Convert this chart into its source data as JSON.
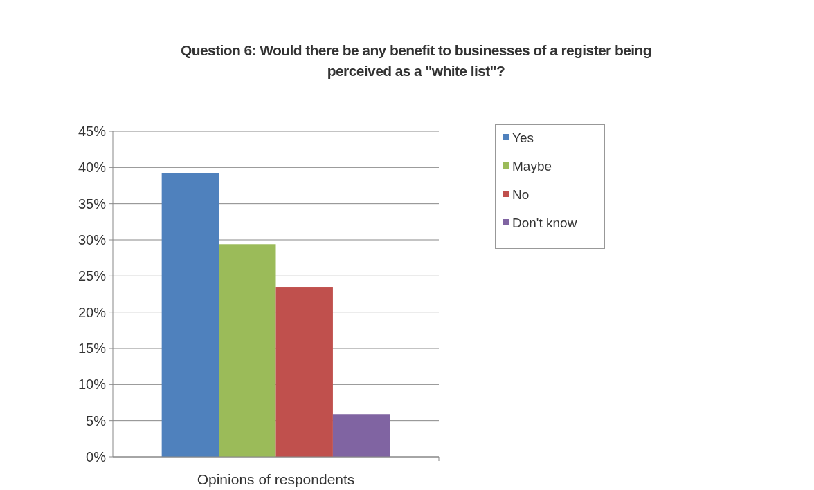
{
  "chart_data": {
    "type": "bar",
    "title": "Question 6: Would there be any benefit to businesses of a register being perceived as a \"white list\"?",
    "categories": [
      "Opinions of respondents"
    ],
    "series": [
      {
        "name": "Yes",
        "color": "#4f81bd",
        "values": [
          39.2
        ]
      },
      {
        "name": "Maybe",
        "color": "#9bbb59",
        "values": [
          29.4
        ]
      },
      {
        "name": "No",
        "color": "#c0504d",
        "values": [
          23.5
        ]
      },
      {
        "name": "Don't know",
        "color": "#8064a2",
        "values": [
          5.9
        ]
      }
    ],
    "ylim": [
      0,
      45
    ],
    "yticks": [
      {
        "value": 0,
        "label": "0%"
      },
      {
        "value": 5,
        "label": "5%"
      },
      {
        "value": 10,
        "label": "10%"
      },
      {
        "value": 15,
        "label": "15%"
      },
      {
        "value": 20,
        "label": "20%"
      },
      {
        "value": 25,
        "label": "25%"
      },
      {
        "value": 30,
        "label": "30%"
      },
      {
        "value": 35,
        "label": "35%"
      },
      {
        "value": 40,
        "label": "40%"
      },
      {
        "value": 45,
        "label": "45%"
      }
    ],
    "grid": "y",
    "legend": "right"
  }
}
